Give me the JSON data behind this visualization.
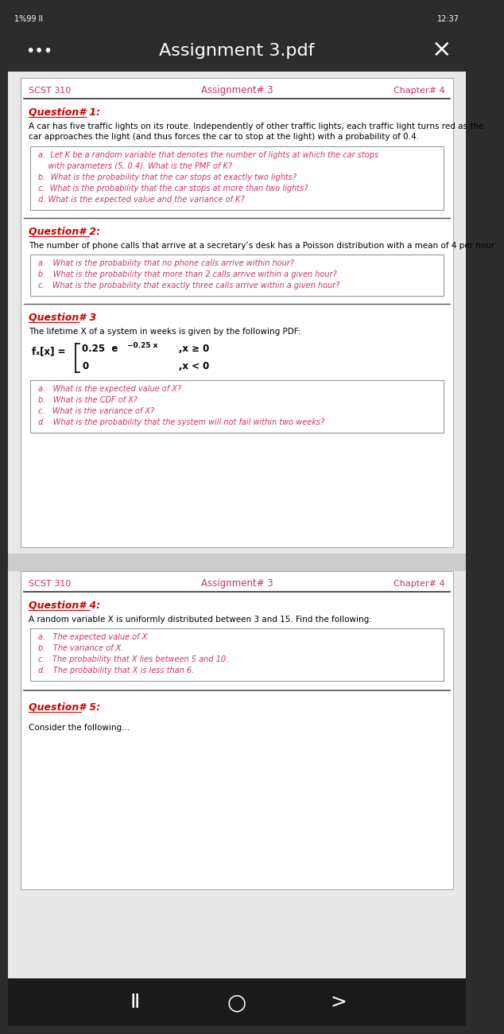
{
  "bg_color": "#2c2c2c",
  "page_bg": "#e8e8e8",
  "card_bg": "#ffffff",
  "header_color": "#cc3366",
  "question_color": "#cc0000",
  "body_color": "#000000",
  "box_text_color": "#cc3366",
  "page1": {
    "header_left": "SCST 310",
    "header_center": "Assignment# 3",
    "header_right": "Chapter# 4",
    "q1_title": "Question# 1:",
    "q1_body_lines": [
      "A car has five traffic lights on its route. Independently of other traffic lights, each traffic light turns red as the",
      "car approaches the light (and thus forces the car to stop at the light) with a probability of 0.4."
    ],
    "q1_box": [
      "a.  Let K be a random variable that denotes the number of lights at which the car stops",
      "    with parameters (5, 0.4). What is the PMF of K?",
      "b.  What is the probability that the car stops at exactly two lights?",
      "c.  What is the probability that the car stops at more than two lights?",
      "d. What is the expected value and the variance of K?"
    ],
    "q2_title": "Question# 2:",
    "q2_body": "The number of phone calls that arrive at a secretary’s desk has a Poisson distribution with a mean of 4 per hour.",
    "q2_box": [
      "a.   What is the probability that no phone calls arrive within hour?",
      "b.   What is the probability that more than 2 calls arrive within a given hour?",
      "c.   What is the probability that exactly three calls arrive within a given hour?"
    ],
    "q3_title": "Question# 3",
    "q3_body": "The lifetime X of a system in weeks is given by the following PDF:",
    "q3_box": [
      "a.   What is the expected value of X?",
      "b.   What is the CDF of X?",
      "c.   What is the variance of X?",
      "d.   What is the probability that the system will not fail within two weeks?"
    ]
  },
  "page2": {
    "header_left": "SCST 310",
    "header_center": "Assignment# 3",
    "header_right": "Chapter# 4",
    "q4_title": "Question# 4:",
    "q4_body": "A random variable X is uniformly distributed between 3 and 15. Find the following:",
    "q4_box": [
      "a.   The expected value of X",
      "b.   The variance of X.",
      "c.   The probability that X lies between 5 and 10.",
      "d.   The probability that X is less than 6."
    ],
    "q5_title": "Question# 5:"
  },
  "nav_bar_bg": "#1a1a1a"
}
